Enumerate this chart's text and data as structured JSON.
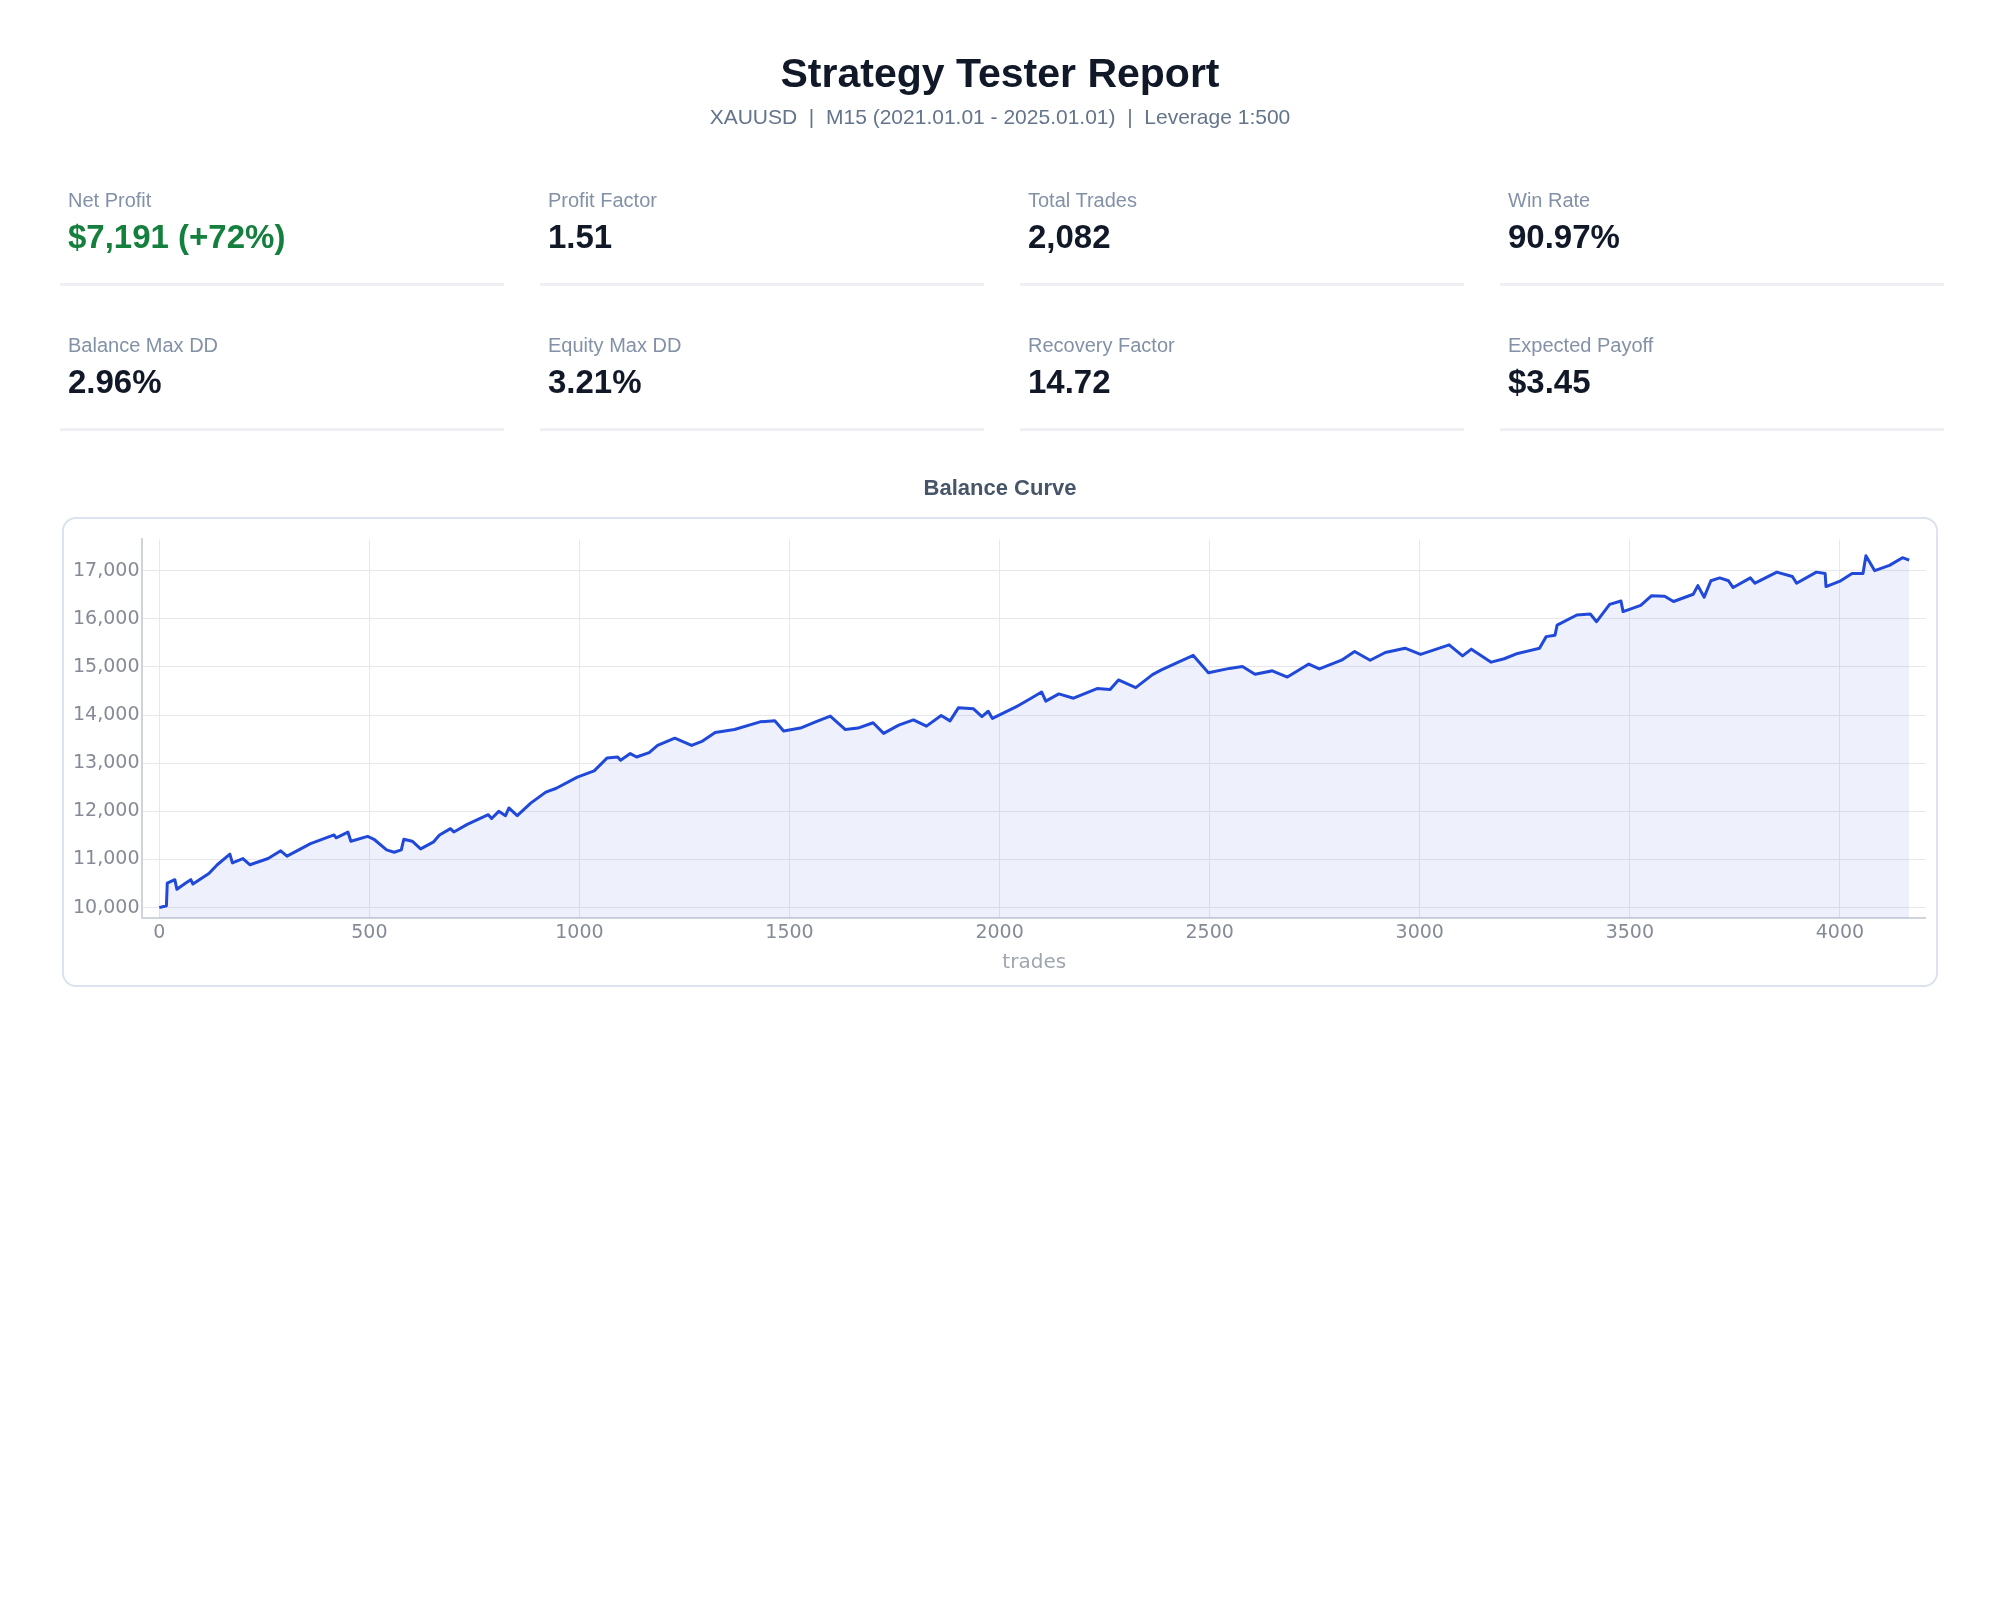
{
  "chart_data": [
    {
      "type": "other",
      "title": "Strategy Tester Report",
      "subtitle": "XAUUSD  |  M15 (2021.01.01 - 2025.01.01)  |  Leverage 1:500",
      "annotations": [
        "Net Profit",
        "$7,191 (+72%)",
        "Profit Factor",
        "1.51",
        "Total Trades",
        "2,082",
        "Win Rate",
        "90.97%",
        "Balance Max DD",
        "2.96%",
        "Equity Max DD",
        "3.21%",
        "Recovery Factor",
        "14.72",
        "Expected Payoff",
        "$3.45"
      ]
    },
    {
      "type": "area",
      "title": "Balance Curve",
      "xlabel": "trades",
      "color": "#2049d9",
      "grid": true,
      "legend": false,
      "marker": "none",
      "line_style": "solid",
      "x": [
        0,
        17,
        19,
        37,
        42,
        63,
        75,
        80,
        118,
        138,
        168,
        174,
        199,
        216,
        259,
        289,
        304,
        360,
        416,
        421,
        449,
        456,
        496,
        511,
        541,
        559,
        576,
        582,
        602,
        622,
        652,
        667,
        693,
        701,
        733,
        783,
        791,
        808,
        824,
        832,
        852,
        884,
        920,
        945,
        995,
        1035,
        1066,
        1091,
        1098,
        1121,
        1136,
        1166,
        1186,
        1227,
        1267,
        1293,
        1323,
        1369,
        1430,
        1465,
        1486,
        1526,
        1562,
        1597,
        1633,
        1663,
        1699,
        1724,
        1760,
        1795,
        1826,
        1861,
        1882,
        1902,
        1938,
        1958,
        1973,
        1983,
        2039,
        2075,
        2100,
        2110,
        2141,
        2176,
        2232,
        2263,
        2283,
        2324,
        2364,
        2385,
        2461,
        2497,
        2547,
        2578,
        2608,
        2649,
        2685,
        2736,
        2761,
        2814,
        2845,
        2882,
        2918,
        2965,
        3002,
        3070,
        3102,
        3123,
        3170,
        3201,
        3233,
        3285,
        3301,
        3322,
        3327,
        3374,
        3406,
        3421,
        3452,
        3479,
        3484,
        3526,
        3552,
        3583,
        3604,
        3651,
        3662,
        3677,
        3693,
        3714,
        3735,
        3746,
        3787,
        3798,
        3850,
        3887,
        3897,
        3944,
        3965,
        3967,
        4002,
        4029,
        4055,
        4062,
        4083,
        4118,
        4149,
        4165
      ],
      "values": [
        10000,
        10040,
        10510,
        10580,
        10380,
        10510,
        10580,
        10490,
        10710,
        10890,
        11110,
        10930,
        11020,
        10890,
        11020,
        11180,
        11070,
        11330,
        11510,
        11450,
        11570,
        11380,
        11480,
        11420,
        11200,
        11150,
        11200,
        11420,
        11380,
        11220,
        11360,
        11510,
        11640,
        11570,
        11730,
        11930,
        11850,
        12000,
        11910,
        12070,
        11910,
        12170,
        12400,
        12480,
        12710,
        12840,
        13110,
        13130,
        13060,
        13200,
        13130,
        13220,
        13370,
        13520,
        13370,
        13460,
        13640,
        13700,
        13860,
        13880,
        13670,
        13730,
        13860,
        13980,
        13700,
        13730,
        13840,
        13620,
        13790,
        13900,
        13770,
        13990,
        13880,
        14150,
        14130,
        13970,
        14080,
        13930,
        14170,
        14350,
        14480,
        14290,
        14440,
        14350,
        14550,
        14530,
        14730,
        14570,
        14840,
        14940,
        15240,
        14880,
        14970,
        15010,
        14850,
        14920,
        14790,
        15060,
        14960,
        15140,
        15320,
        15140,
        15300,
        15390,
        15260,
        15460,
        15230,
        15370,
        15100,
        15170,
        15280,
        15390,
        15630,
        15660,
        15870,
        16080,
        16100,
        15940,
        16300,
        16370,
        16150,
        16280,
        16480,
        16470,
        16360,
        16510,
        16690,
        16450,
        16790,
        16850,
        16790,
        16650,
        16850,
        16740,
        16970,
        16880,
        16740,
        16970,
        16940,
        16670,
        16790,
        16940,
        16940,
        17310,
        17000,
        17110,
        17270,
        17220
      ],
      "xlim": [
        -40,
        4205
      ],
      "xticks": [
        0,
        500,
        1000,
        1500,
        2000,
        2500,
        3000,
        3500,
        4000
      ],
      "ylim": [
        9780,
        17650
      ],
      "yticks": [
        {
          "value": 10000,
          "label": "10,000"
        },
        {
          "value": 11000,
          "label": "11,000"
        },
        {
          "value": 12000,
          "label": "12,000"
        },
        {
          "value": 13000,
          "label": "13,000"
        },
        {
          "value": 14000,
          "label": "14,000"
        },
        {
          "value": 15000,
          "label": "15,000"
        },
        {
          "value": 16000,
          "label": "16,000"
        },
        {
          "value": 17000,
          "label": "17,000"
        }
      ]
    }
  ]
}
